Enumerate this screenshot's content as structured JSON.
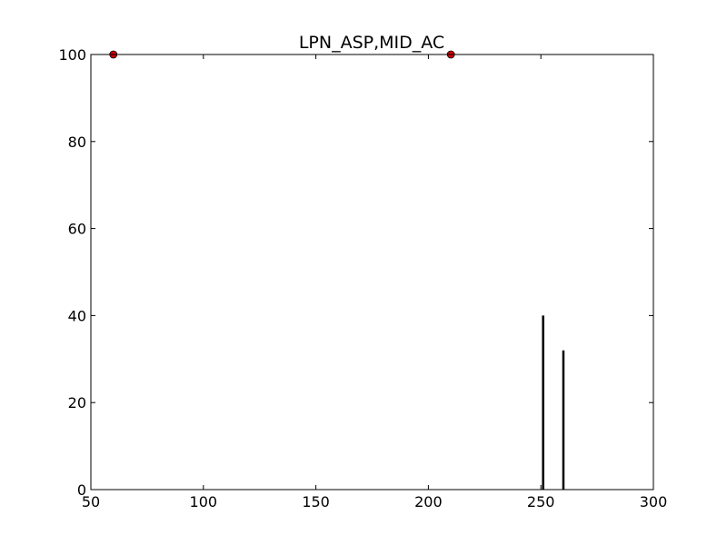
{
  "chart_data": {
    "type": "scatter",
    "title": "LPN_ASP,MID_AC",
    "xlabel": "",
    "ylabel": "",
    "xlim": [
      50,
      300
    ],
    "ylim": [
      0,
      100
    ],
    "x_ticks": [
      "50",
      "100",
      "150",
      "200",
      "250",
      "300"
    ],
    "y_ticks": [
      "0",
      "20",
      "40",
      "60",
      "80",
      "100"
    ],
    "grid": false,
    "series": [
      {
        "type": "scatter",
        "marker": "circle",
        "color": "#cc0000",
        "points": [
          {
            "x": 60,
            "y": 100
          },
          {
            "x": 210,
            "y": 100
          }
        ]
      },
      {
        "type": "stem",
        "color": "#000000",
        "points": [
          {
            "x": 251,
            "y": 40
          },
          {
            "x": 260,
            "y": 32
          }
        ]
      }
    ]
  }
}
